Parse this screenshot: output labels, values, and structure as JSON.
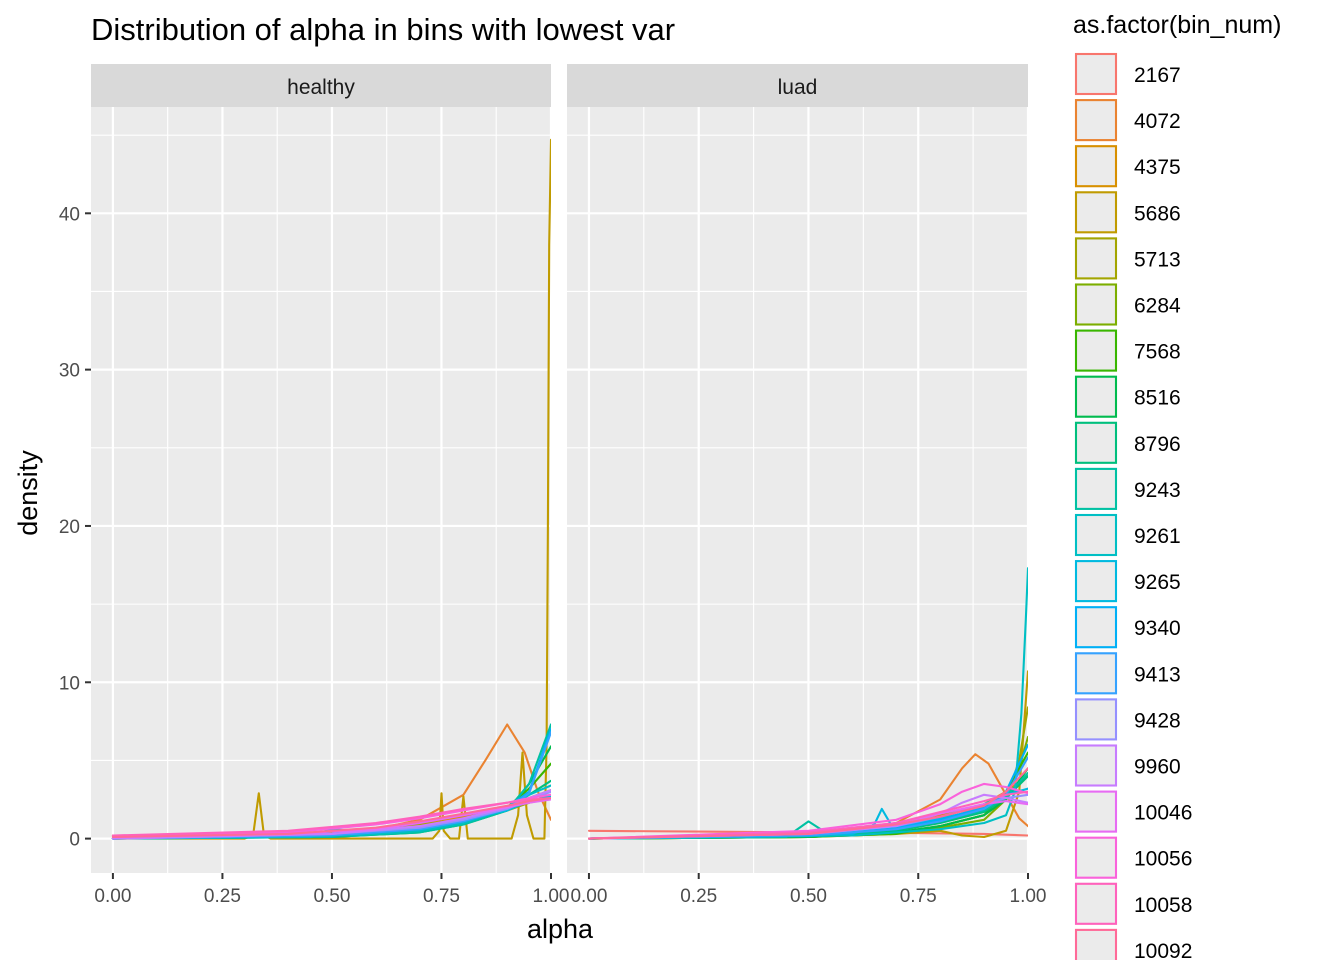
{
  "chart_data": {
    "type": "line",
    "title": "Distribution of alpha in bins with lowest var",
    "xlabel": "alpha",
    "ylabel": "density",
    "xlim": [
      -0.05,
      1.0
    ],
    "ylim": [
      -2.2,
      46.8
    ],
    "x_ticks": [
      0,
      0.25,
      0.5,
      0.75,
      1.0
    ],
    "x_tick_labels": [
      "0.00",
      "0.25",
      "0.50",
      "0.75",
      "1.00"
    ],
    "y_ticks": [
      0,
      10,
      20,
      30,
      40
    ],
    "y_tick_labels": [
      "0",
      "10",
      "20",
      "30",
      "40"
    ],
    "grid": true,
    "panel_background": "#ebebeb",
    "strip_background": "#d9d9d9",
    "legend": {
      "title": "as.factor(bin_num)",
      "position": "right",
      "entries": [
        {
          "label": "2167",
          "color": "#F8766D"
        },
        {
          "label": "4072",
          "color": "#EA8331"
        },
        {
          "label": "4375",
          "color": "#D89000"
        },
        {
          "label": "5686",
          "color": "#C09B00"
        },
        {
          "label": "5713",
          "color": "#A3A500"
        },
        {
          "label": "6284",
          "color": "#7CAE00"
        },
        {
          "label": "7568",
          "color": "#39B600"
        },
        {
          "label": "8516",
          "color": "#00BB4E"
        },
        {
          "label": "8796",
          "color": "#00BF7D"
        },
        {
          "label": "9243",
          "color": "#00C1A3"
        },
        {
          "label": "9261",
          "color": "#00BFC4"
        },
        {
          "label": "9265",
          "color": "#00BAE0"
        },
        {
          "label": "9340",
          "color": "#00B0F6"
        },
        {
          "label": "9413",
          "color": "#35A2FF"
        },
        {
          "label": "9428",
          "color": "#9590FF"
        },
        {
          "label": "9960",
          "color": "#C77CFF"
        },
        {
          "label": "10046",
          "color": "#E76BF3"
        },
        {
          "label": "10056",
          "color": "#FA62DB"
        },
        {
          "label": "10058",
          "color": "#FF62BC"
        },
        {
          "label": "10092",
          "color": "#FF6A98"
        }
      ]
    },
    "panels": [
      {
        "name": "healthy",
        "series": [
          {
            "name": "2167",
            "x": [
              0,
              0.2,
              0.4,
              0.55,
              0.65,
              0.75,
              0.85,
              0.95,
              1.0
            ],
            "y": [
              0.1,
              0.15,
              0.25,
              0.4,
              0.7,
              1.1,
              1.6,
              2.3,
              2.8
            ]
          },
          {
            "name": "4072",
            "x": [
              0,
              0.3,
              0.5,
              0.6,
              0.7,
              0.75,
              0.8,
              0.85,
              0.9,
              0.94,
              0.97,
              1.0
            ],
            "y": [
              0,
              0.1,
              0.3,
              0.6,
              1.2,
              2.0,
              2.8,
              5.0,
              7.3,
              5.5,
              3.0,
              1.2
            ]
          },
          {
            "name": "4375",
            "x": [
              0,
              0.3,
              0.5,
              0.6,
              0.7,
              0.8,
              0.9,
              0.95,
              1.0
            ],
            "y": [
              0.1,
              0.15,
              0.3,
              0.6,
              1.0,
              1.4,
              2.0,
              2.4,
              2.7
            ]
          },
          {
            "name": "5686",
            "x": [
              0,
              0.3,
              0.32,
              0.333,
              0.345,
              0.36,
              0.73,
              0.745,
              0.75,
              0.755,
              0.77,
              0.79,
              0.8,
              0.81,
              0.83,
              0.91,
              0.925,
              0.935,
              0.945,
              0.96,
              0.985,
              0.99,
              0.993,
              0.996,
              1.0
            ],
            "y": [
              0,
              0,
              0.2,
              2.9,
              0.2,
              0,
              0,
              0.5,
              2.9,
              0.5,
              0,
              0,
              2.7,
              0,
              0,
              0,
              1.5,
              5.5,
              1.5,
              0,
              0,
              6.0,
              20.0,
              38.0,
              44.7
            ]
          },
          {
            "name": "5713",
            "x": [
              0,
              0.3,
              0.5,
              0.6,
              0.7,
              0.8,
              0.9,
              0.95,
              1.0
            ],
            "y": [
              0.2,
              0.2,
              0.35,
              0.6,
              0.9,
              1.2,
              1.8,
              2.3,
              2.6
            ]
          },
          {
            "name": "6284",
            "x": [
              0,
              0.4,
              0.6,
              0.7,
              0.8,
              0.9,
              0.95,
              1.0
            ],
            "y": [
              0,
              0.1,
              0.3,
              0.6,
              1.1,
              1.8,
              2.6,
              3.1
            ]
          },
          {
            "name": "7568",
            "x": [
              0,
              0.5,
              0.7,
              0.8,
              0.9,
              0.95,
              1.0
            ],
            "y": [
              0,
              0.2,
              0.5,
              1.0,
              2.0,
              3.2,
              4.8
            ]
          },
          {
            "name": "8516",
            "x": [
              0,
              0.5,
              0.7,
              0.8,
              0.9,
              0.95,
              1.0
            ],
            "y": [
              0,
              0.1,
              0.4,
              0.9,
              1.8,
              3.5,
              5.9
            ]
          },
          {
            "name": "8796",
            "x": [
              0,
              0.5,
              0.7,
              0.8,
              0.9,
              0.95,
              1.0
            ],
            "y": [
              0,
              0.15,
              0.5,
              1.0,
              1.9,
              2.8,
              3.7
            ]
          },
          {
            "name": "9243",
            "x": [
              0,
              0.5,
              0.7,
              0.8,
              0.9,
              0.95,
              1.0
            ],
            "y": [
              0,
              0.1,
              0.4,
              0.9,
              1.8,
              3.5,
              7.3
            ]
          },
          {
            "name": "9261",
            "x": [
              0,
              0.45,
              0.5,
              0.55,
              0.7,
              0.8,
              0.9,
              0.95,
              1.0
            ],
            "y": [
              0,
              0.1,
              0.5,
              0.2,
              0.5,
              1.0,
              1.9,
              2.8,
              3.4
            ]
          },
          {
            "name": "9265",
            "x": [
              0,
              0.45,
              0.5,
              0.55,
              0.7,
              0.8,
              0.9,
              0.95,
              1.0
            ],
            "y": [
              0,
              0.2,
              0.6,
              0.5,
              0.7,
              1.2,
              1.8,
              2.4,
              2.7
            ]
          },
          {
            "name": "9340",
            "x": [
              0,
              0.5,
              0.7,
              0.8,
              0.9,
              0.95,
              1.0
            ],
            "y": [
              0,
              0.3,
              0.7,
              1.2,
              2.0,
              3.0,
              7.0
            ]
          },
          {
            "name": "9413",
            "x": [
              0,
              0.5,
              0.7,
              0.8,
              0.9,
              0.95,
              1.0
            ],
            "y": [
              0,
              0.2,
              0.6,
              1.1,
              1.9,
              2.9,
              6.8
            ]
          },
          {
            "name": "9428",
            "x": [
              0,
              0.5,
              0.7,
              0.8,
              0.9,
              0.95,
              1.0
            ],
            "y": [
              0,
              0.3,
              0.7,
              1.2,
              1.9,
              2.5,
              3.0
            ]
          },
          {
            "name": "9960",
            "x": [
              0,
              0.5,
              0.7,
              0.8,
              0.9,
              0.95,
              1.0
            ],
            "y": [
              0,
              0.3,
              0.8,
              1.3,
              2.0,
              2.6,
              3.1
            ]
          },
          {
            "name": "10046",
            "x": [
              0,
              0.4,
              0.6,
              0.7,
              0.8,
              0.9,
              0.95,
              1.0
            ],
            "y": [
              0.1,
              0.3,
              0.6,
              1.0,
              1.5,
              2.0,
              2.3,
              2.5
            ]
          },
          {
            "name": "10056",
            "x": [
              0,
              0.4,
              0.6,
              0.7,
              0.8,
              0.9,
              0.95,
              1.0
            ],
            "y": [
              0.1,
              0.4,
              0.9,
              1.3,
              1.8,
              2.3,
              2.6,
              2.8
            ]
          },
          {
            "name": "10058",
            "x": [
              0,
              0.4,
              0.6,
              0.7,
              0.8,
              0.9,
              0.95,
              1.0
            ],
            "y": [
              0.2,
              0.5,
              1.0,
              1.4,
              1.9,
              2.3,
              2.5,
              2.6
            ]
          },
          {
            "name": "10092",
            "x": [
              0,
              0.4,
              0.6,
              0.7,
              0.8,
              0.9,
              0.95,
              1.0
            ],
            "y": [
              0.1,
              0.3,
              0.7,
              1.1,
              1.6,
              2.1,
              2.4,
              2.6
            ]
          }
        ]
      },
      {
        "name": "luad",
        "series": [
          {
            "name": "2167",
            "x": [
              0,
              0.25,
              0.5,
              0.75,
              0.9,
              1.0
            ],
            "y": [
              0.5,
              0.45,
              0.4,
              0.35,
              0.3,
              0.2
            ]
          },
          {
            "name": "4072",
            "x": [
              0,
              0.4,
              0.6,
              0.7,
              0.8,
              0.85,
              0.88,
              0.91,
              0.95,
              0.98,
              1.0
            ],
            "y": [
              0,
              0.2,
              0.5,
              1.0,
              2.5,
              4.5,
              5.4,
              4.8,
              2.8,
              1.3,
              0.8
            ]
          },
          {
            "name": "4375",
            "x": [
              0,
              0.4,
              0.6,
              0.7,
              0.8,
              0.9,
              0.95,
              1.0
            ],
            "y": [
              0,
              0.2,
              0.5,
              1.0,
              1.5,
              2.2,
              3.0,
              4.0
            ]
          },
          {
            "name": "5686",
            "x": [
              0,
              0.5,
              0.7,
              0.8,
              0.85,
              0.9,
              0.95,
              0.98,
              1.0
            ],
            "y": [
              0,
              0.1,
              0.3,
              0.5,
              0.2,
              0.1,
              0.5,
              3.0,
              10.7
            ]
          },
          {
            "name": "5713",
            "x": [
              0,
              0.5,
              0.7,
              0.8,
              0.9,
              0.95,
              0.98,
              1.0
            ],
            "y": [
              0,
              0.1,
              0.4,
              0.8,
              1.5,
              2.5,
              5.0,
              8.4
            ]
          },
          {
            "name": "6284",
            "x": [
              0,
              0.5,
              0.7,
              0.8,
              0.9,
              0.95,
              0.98,
              1.0
            ],
            "y": [
              0,
              0.1,
              0.4,
              0.7,
              1.2,
              2.5,
              4.5,
              6.5
            ]
          },
          {
            "name": "7568",
            "x": [
              0,
              0.5,
              0.7,
              0.8,
              0.9,
              0.95,
              1.0
            ],
            "y": [
              0,
              0.1,
              0.3,
              0.8,
              1.5,
              3.0,
              5.5
            ]
          },
          {
            "name": "8516",
            "x": [
              0,
              0.5,
              0.7,
              0.8,
              0.9,
              0.95,
              1.0
            ],
            "y": [
              0,
              0.1,
              0.4,
              0.8,
              1.5,
              2.5,
              4.5
            ]
          },
          {
            "name": "8796",
            "x": [
              0,
              0.5,
              0.7,
              0.8,
              0.9,
              0.95,
              1.0
            ],
            "y": [
              0,
              0.15,
              0.5,
              1.0,
              1.7,
              2.6,
              4.0
            ]
          },
          {
            "name": "9243",
            "x": [
              0,
              0.45,
              0.5,
              0.55,
              0.7,
              0.8,
              0.9,
              0.95,
              1.0
            ],
            "y": [
              0,
              0.1,
              1.1,
              0.2,
              0.6,
              1.1,
              1.8,
              2.7,
              4.2
            ]
          },
          {
            "name": "9261",
            "x": [
              0,
              0.6,
              0.8,
              0.9,
              0.95,
              0.97,
              0.985,
              0.995,
              1.0
            ],
            "y": [
              0,
              0.2,
              0.6,
              1.0,
              1.5,
              3.0,
              8.0,
              14.0,
              17.3
            ]
          },
          {
            "name": "9265",
            "x": [
              0,
              0.6,
              0.65,
              0.667,
              0.69,
              0.75,
              0.85,
              0.95,
              1.0
            ],
            "y": [
              0,
              0.3,
              0.9,
              1.9,
              0.8,
              1.0,
              1.6,
              2.8,
              3.2
            ]
          },
          {
            "name": "9340",
            "x": [
              0,
              0.5,
              0.7,
              0.8,
              0.9,
              0.95,
              1.0
            ],
            "y": [
              0,
              0.3,
              0.7,
              1.2,
              2.0,
              3.0,
              6.0
            ]
          },
          {
            "name": "9413",
            "x": [
              0,
              0.5,
              0.7,
              0.8,
              0.9,
              0.95,
              1.0
            ],
            "y": [
              0,
              0.2,
              0.6,
              1.1,
              1.9,
              2.8,
              5.2
            ]
          },
          {
            "name": "9428",
            "x": [
              0,
              0.5,
              0.7,
              0.8,
              0.9,
              0.95,
              1.0
            ],
            "y": [
              0,
              0.3,
              0.8,
              1.4,
              2.2,
              2.6,
              2.8
            ]
          },
          {
            "name": "9960",
            "x": [
              0,
              0.5,
              0.7,
              0.8,
              0.85,
              0.9,
              0.95,
              1.0
            ],
            "y": [
              0,
              0.3,
              0.8,
              1.6,
              2.3,
              2.8,
              2.6,
              2.3
            ]
          },
          {
            "name": "10046",
            "x": [
              0,
              0.5,
              0.7,
              0.8,
              0.9,
              0.95,
              1.0
            ],
            "y": [
              0,
              0.4,
              1.0,
              1.6,
              2.2,
              2.4,
              2.2
            ]
          },
          {
            "name": "10056",
            "x": [
              0,
              0.5,
              0.7,
              0.8,
              0.85,
              0.9,
              0.95,
              1.0
            ],
            "y": [
              0,
              0.5,
              1.2,
              2.2,
              3.0,
              3.5,
              3.3,
              2.9
            ]
          },
          {
            "name": "10058",
            "x": [
              0,
              0.5,
              0.7,
              0.8,
              0.9,
              0.95,
              1.0
            ],
            "y": [
              0,
              0.4,
              1.0,
              1.7,
              2.4,
              2.8,
              3.0
            ]
          },
          {
            "name": "10092",
            "x": [
              0,
              0.5,
              0.7,
              0.8,
              0.9,
              0.95,
              1.0
            ],
            "y": [
              0,
              0.3,
              0.9,
              1.4,
              2.1,
              3.0,
              4.5
            ]
          }
        ]
      }
    ]
  }
}
